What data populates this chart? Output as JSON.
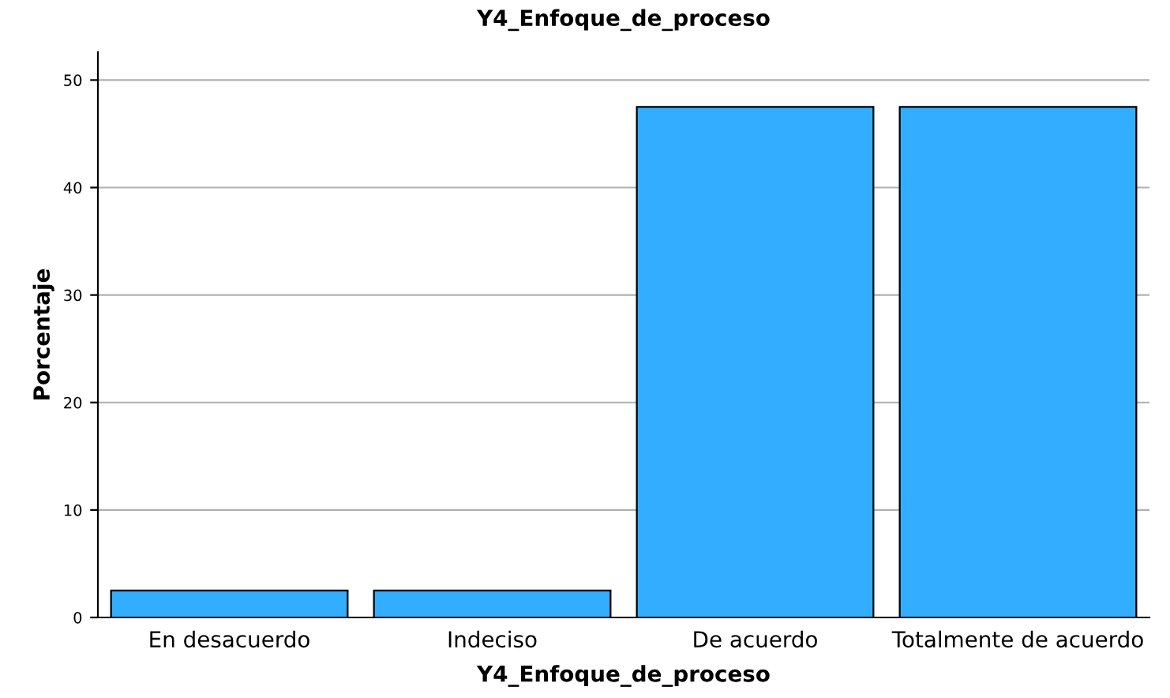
{
  "chart_data": {
    "type": "bar",
    "title": "Y4_Enfoque_de_proceso",
    "xlabel": "Y4_Enfoque_de_proceso",
    "ylabel": "Porcentaje",
    "categories": [
      "En desacuerdo",
      "Indeciso",
      "De acuerdo",
      "Totalmente de acuerdo"
    ],
    "values": [
      2.5,
      2.5,
      47.5,
      47.5
    ],
    "color": "#33adff",
    "ylim": [
      0,
      52.6
    ],
    "yticks": [
      0,
      10,
      20,
      30,
      40,
      50
    ],
    "grid": "y"
  }
}
